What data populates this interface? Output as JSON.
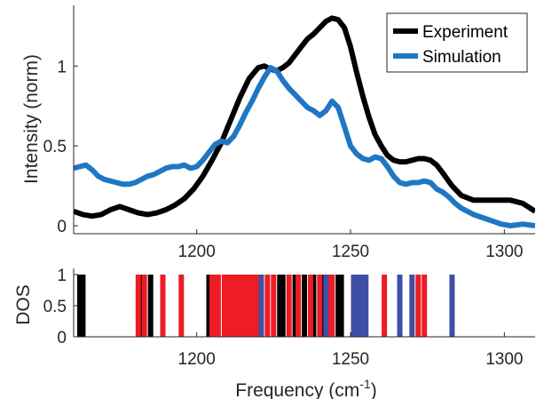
{
  "chart_data": [
    {
      "type": "line",
      "ylabel": "Intensity (norm)",
      "xlim": [
        1160,
        1310
      ],
      "ylim": [
        -0.05,
        1.38
      ],
      "xticks": [
        1200,
        1250,
        1300
      ],
      "xtick_labels": [
        "1200",
        "1250",
        "1300"
      ],
      "yticks": [
        0,
        0.5,
        1
      ],
      "ytick_labels": [
        "0",
        "0.5",
        "1"
      ],
      "legend_position": "top-right",
      "series": [
        {
          "name": "Experiment",
          "color": "#000000",
          "x": [
            1160,
            1163,
            1166,
            1169,
            1172,
            1175,
            1178,
            1181,
            1184,
            1187,
            1190,
            1193,
            1196,
            1199,
            1202,
            1205,
            1208,
            1211,
            1214,
            1217,
            1220,
            1222,
            1224,
            1226,
            1228,
            1230,
            1232,
            1234,
            1236,
            1238,
            1240,
            1242,
            1244,
            1246,
            1248,
            1250,
            1252,
            1254,
            1256,
            1258,
            1260,
            1262,
            1264,
            1266,
            1268,
            1270,
            1272,
            1274,
            1276,
            1278,
            1280,
            1283,
            1286,
            1290,
            1294,
            1298,
            1302,
            1306,
            1310
          ],
          "y": [
            0.09,
            0.07,
            0.06,
            0.07,
            0.1,
            0.12,
            0.1,
            0.08,
            0.07,
            0.08,
            0.1,
            0.13,
            0.17,
            0.23,
            0.31,
            0.41,
            0.52,
            0.66,
            0.8,
            0.92,
            0.99,
            1.0,
            0.98,
            0.97,
            0.99,
            1.02,
            1.07,
            1.12,
            1.17,
            1.2,
            1.24,
            1.28,
            1.3,
            1.29,
            1.24,
            1.12,
            0.96,
            0.81,
            0.68,
            0.57,
            0.5,
            0.44,
            0.41,
            0.4,
            0.4,
            0.41,
            0.42,
            0.42,
            0.41,
            0.38,
            0.33,
            0.25,
            0.19,
            0.16,
            0.16,
            0.16,
            0.16,
            0.14,
            0.09
          ]
        },
        {
          "name": "Simulation",
          "color": "#1f77c4",
          "x": [
            1160,
            1162,
            1164,
            1166,
            1168,
            1170,
            1172,
            1174,
            1176,
            1178,
            1180,
            1182,
            1184,
            1186,
            1188,
            1190,
            1192,
            1194,
            1196,
            1198,
            1200,
            1202,
            1204,
            1206,
            1208,
            1210,
            1212,
            1214,
            1216,
            1218,
            1220,
            1222,
            1224,
            1226,
            1228,
            1230,
            1232,
            1234,
            1236,
            1238,
            1240,
            1242,
            1244,
            1246,
            1248,
            1250,
            1252,
            1254,
            1256,
            1258,
            1260,
            1262,
            1264,
            1266,
            1268,
            1270,
            1272,
            1274,
            1276,
            1278,
            1280,
            1282,
            1284,
            1286,
            1288,
            1290,
            1293,
            1296,
            1299,
            1302,
            1306,
            1310
          ],
          "y": [
            0.36,
            0.37,
            0.38,
            0.35,
            0.31,
            0.29,
            0.28,
            0.27,
            0.26,
            0.26,
            0.27,
            0.29,
            0.31,
            0.32,
            0.34,
            0.36,
            0.37,
            0.37,
            0.38,
            0.36,
            0.37,
            0.41,
            0.46,
            0.51,
            0.53,
            0.52,
            0.56,
            0.63,
            0.71,
            0.78,
            0.86,
            0.93,
            0.99,
            0.97,
            0.91,
            0.86,
            0.82,
            0.78,
            0.74,
            0.72,
            0.69,
            0.72,
            0.78,
            0.74,
            0.62,
            0.5,
            0.45,
            0.42,
            0.41,
            0.43,
            0.42,
            0.37,
            0.31,
            0.27,
            0.26,
            0.27,
            0.27,
            0.28,
            0.27,
            0.23,
            0.21,
            0.18,
            0.14,
            0.11,
            0.09,
            0.07,
            0.05,
            0.03,
            0.01,
            0.0,
            0.01,
            0.0
          ]
        }
      ]
    },
    {
      "type": "bar",
      "xlabel": "Frequency (cm<sup>-1</sup>)",
      "xlabel_text": "Frequency (cm",
      "xlabel_sup": "-1",
      "xlabel_close": ")",
      "ylabel": "DOS",
      "xlim": [
        1160,
        1310
      ],
      "ylim": [
        0,
        1.1
      ],
      "xticks": [
        1200,
        1250,
        1300
      ],
      "xtick_labels": [
        "1200",
        "1250",
        "1300"
      ],
      "yticks": [
        0,
        0.5,
        1
      ],
      "ytick_labels": [
        "0",
        "0.5",
        "1"
      ],
      "bar_value": 1,
      "groups": [
        {
          "color": "#000000",
          "x": [
            1162,
            1163,
            1182,
            1185,
            1204,
            1227,
            1228,
            1232,
            1235,
            1238,
            1241,
            1246,
            1247
          ]
        },
        {
          "color": "#ee1c24",
          "x": [
            1181,
            1183,
            1189,
            1195,
            1205,
            1206,
            1207,
            1209,
            1210,
            1211,
            1212,
            1213,
            1214,
            1215,
            1216,
            1217,
            1218,
            1219,
            1220,
            1223,
            1225,
            1230,
            1233,
            1237,
            1240,
            1243,
            1244,
            1261,
            1272,
            1274
          ]
        },
        {
          "color": "#3f4fa8",
          "x": [
            1221,
            1242,
            1251,
            1252,
            1253,
            1254,
            1255,
            1266,
            1270,
            1283
          ]
        }
      ]
    }
  ]
}
